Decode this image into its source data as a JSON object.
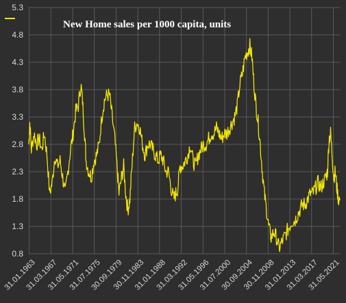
{
  "chart_data": {
    "type": "line",
    "title": "New Home sales per 1000 capita, units",
    "xlabel": "",
    "ylabel": "",
    "ylim": [
      0.8,
      5.3
    ],
    "yticks": [
      0.8,
      1.3,
      1.8,
      2.3,
      2.8,
      3.3,
      3.8,
      4.3,
      4.8,
      5.3
    ],
    "xlim": [
      1963.0,
      2022.8
    ],
    "xticks": [
      {
        "label": "31.01.1963",
        "x": 1963.08
      },
      {
        "label": "31.03.1967",
        "x": 1967.25
      },
      {
        "label": "31.05.1971",
        "x": 1971.42
      },
      {
        "label": "31.07.1975",
        "x": 1975.58
      },
      {
        "label": "30.09.1979",
        "x": 1979.75
      },
      {
        "label": "30.11.1983",
        "x": 1983.92
      },
      {
        "label": "31.01.1988",
        "x": 1988.08
      },
      {
        "label": "31.03.1992",
        "x": 1992.25
      },
      {
        "label": "31.05.1996",
        "x": 1996.42
      },
      {
        "label": "31.07.2000",
        "x": 2000.58
      },
      {
        "label": "30.09.2004",
        "x": 2004.75
      },
      {
        "label": "30.11.2008",
        "x": 2008.92
      },
      {
        "label": "31.01.2013",
        "x": 2013.08
      },
      {
        "label": "31.03.2017",
        "x": 2017.25
      },
      {
        "label": "31.05.2021",
        "x": 2021.42
      }
    ],
    "grid": true,
    "legend": "top-left",
    "colors": {
      "background": "#2e2e2e",
      "grid": "#5a5a5a",
      "line": "#f2e600",
      "text": "#d8d8d8",
      "title": "#ffffff"
    },
    "series": [
      {
        "name": "",
        "points": [
          [
            1963.0,
            2.8
          ],
          [
            1963.2,
            3.2
          ],
          [
            1963.5,
            2.7
          ],
          [
            1964.0,
            3.0
          ],
          [
            1964.5,
            2.8
          ],
          [
            1965.0,
            2.9
          ],
          [
            1965.5,
            2.7
          ],
          [
            1966.0,
            3.0
          ],
          [
            1966.5,
            2.6
          ],
          [
            1967.0,
            1.9
          ],
          [
            1967.5,
            2.1
          ],
          [
            1968.0,
            2.6
          ],
          [
            1968.5,
            2.4
          ],
          [
            1969.0,
            2.5
          ],
          [
            1969.5,
            2.2
          ],
          [
            1970.0,
            1.9
          ],
          [
            1970.5,
            2.3
          ],
          [
            1971.0,
            2.7
          ],
          [
            1971.5,
            3.0
          ],
          [
            1972.0,
            3.4
          ],
          [
            1972.5,
            3.5
          ],
          [
            1973.0,
            3.9
          ],
          [
            1973.3,
            3.6
          ],
          [
            1973.7,
            3.0
          ],
          [
            1974.0,
            2.5
          ],
          [
            1974.5,
            2.3
          ],
          [
            1975.0,
            2.2
          ],
          [
            1975.5,
            2.5
          ],
          [
            1976.0,
            2.6
          ],
          [
            1976.5,
            2.8
          ],
          [
            1977.0,
            3.3
          ],
          [
            1977.5,
            3.6
          ],
          [
            1978.0,
            3.7
          ],
          [
            1978.5,
            3.7
          ],
          [
            1979.0,
            3.3
          ],
          [
            1979.5,
            2.9
          ],
          [
            1980.0,
            2.3
          ],
          [
            1980.3,
            1.9
          ],
          [
            1980.8,
            2.2
          ],
          [
            1981.2,
            2.4
          ],
          [
            1981.6,
            1.9
          ],
          [
            1982.0,
            1.6
          ],
          [
            1982.4,
            1.8
          ],
          [
            1982.8,
            2.4
          ],
          [
            1983.3,
            3.1
          ],
          [
            1983.8,
            3.2
          ],
          [
            1984.3,
            3.1
          ],
          [
            1984.8,
            2.8
          ],
          [
            1985.3,
            2.6
          ],
          [
            1985.8,
            2.8
          ],
          [
            1986.3,
            2.8
          ],
          [
            1986.8,
            2.7
          ],
          [
            1987.3,
            2.6
          ],
          [
            1987.8,
            2.5
          ],
          [
            1988.3,
            2.6
          ],
          [
            1988.8,
            2.5
          ],
          [
            1989.3,
            2.3
          ],
          [
            1989.8,
            2.3
          ],
          [
            1990.3,
            2.0
          ],
          [
            1990.8,
            1.8
          ],
          [
            1991.2,
            1.9
          ],
          [
            1991.6,
            2.0
          ],
          [
            1992.0,
            2.4
          ],
          [
            1992.5,
            2.4
          ],
          [
            1993.0,
            2.5
          ],
          [
            1993.5,
            2.6
          ],
          [
            1994.0,
            2.8
          ],
          [
            1994.5,
            2.5
          ],
          [
            1995.0,
            2.4
          ],
          [
            1995.5,
            2.6
          ],
          [
            1996.0,
            2.7
          ],
          [
            1996.5,
            2.8
          ],
          [
            1997.0,
            2.8
          ],
          [
            1997.5,
            2.9
          ],
          [
            1998.0,
            3.0
          ],
          [
            1998.5,
            3.0
          ],
          [
            1999.0,
            3.1
          ],
          [
            1999.5,
            3.0
          ],
          [
            2000.0,
            2.9
          ],
          [
            2000.5,
            3.0
          ],
          [
            2001.0,
            3.0
          ],
          [
            2001.5,
            3.1
          ],
          [
            2002.0,
            3.2
          ],
          [
            2002.5,
            3.3
          ],
          [
            2003.0,
            3.5
          ],
          [
            2003.5,
            3.9
          ],
          [
            2004.0,
            4.1
          ],
          [
            2004.5,
            4.4
          ],
          [
            2005.0,
            4.5
          ],
          [
            2005.4,
            4.6
          ],
          [
            2005.8,
            4.4
          ],
          [
            2006.2,
            3.9
          ],
          [
            2006.6,
            3.5
          ],
          [
            2007.0,
            3.2
          ],
          [
            2007.4,
            2.8
          ],
          [
            2007.8,
            2.3
          ],
          [
            2008.2,
            1.9
          ],
          [
            2008.6,
            1.6
          ],
          [
            2009.0,
            1.3
          ],
          [
            2009.5,
            1.1
          ],
          [
            2010.0,
            1.2
          ],
          [
            2010.5,
            1.1
          ],
          [
            2011.0,
            0.9
          ],
          [
            2011.5,
            1.0
          ],
          [
            2012.0,
            1.1
          ],
          [
            2012.5,
            1.2
          ],
          [
            2013.0,
            1.3
          ],
          [
            2013.5,
            1.4
          ],
          [
            2014.0,
            1.4
          ],
          [
            2014.5,
            1.5
          ],
          [
            2015.0,
            1.6
          ],
          [
            2015.5,
            1.7
          ],
          [
            2016.0,
            1.7
          ],
          [
            2016.5,
            1.8
          ],
          [
            2017.0,
            1.9
          ],
          [
            2017.5,
            1.9
          ],
          [
            2018.0,
            2.0
          ],
          [
            2018.5,
            2.1
          ],
          [
            2019.0,
            2.0
          ],
          [
            2019.5,
            2.1
          ],
          [
            2020.0,
            2.2
          ],
          [
            2020.3,
            2.3
          ],
          [
            2020.6,
            2.9
          ],
          [
            2020.9,
            3.0
          ],
          [
            2021.2,
            2.6
          ],
          [
            2021.5,
            2.2
          ],
          [
            2021.8,
            2.3
          ],
          [
            2022.1,
            2.0
          ],
          [
            2022.4,
            1.8
          ],
          [
            2022.7,
            1.8
          ]
        ]
      }
    ]
  }
}
